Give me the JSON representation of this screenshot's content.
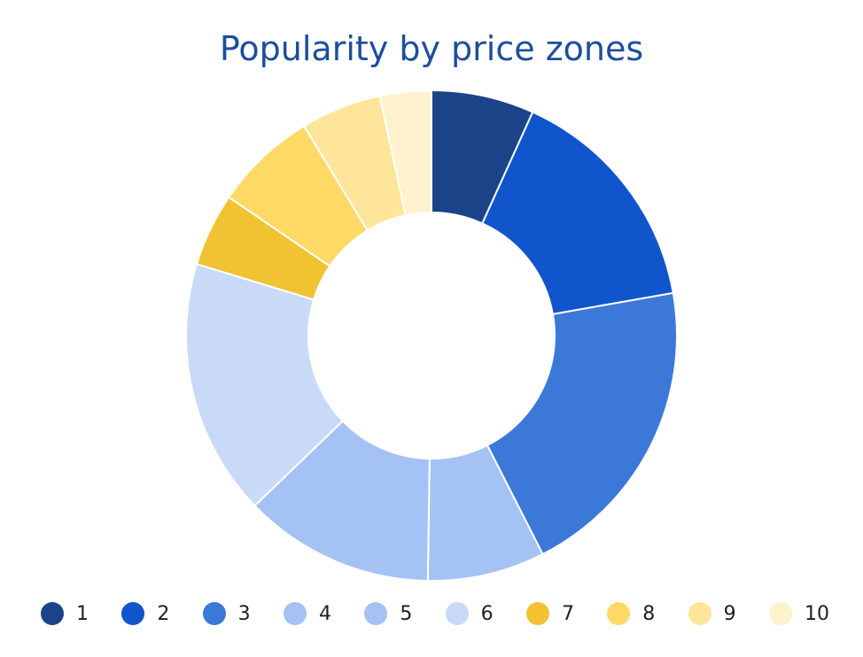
{
  "chart_data": {
    "type": "pie",
    "subtype": "donut",
    "title": "Popularity by price zones",
    "categories": [
      "1",
      "2",
      "3",
      "4",
      "5",
      "6",
      "7",
      "8",
      "9",
      "10"
    ],
    "values": [
      7,
      16,
      21,
      8,
      13,
      17.5,
      5,
      7,
      5.5,
      3.5
    ],
    "colors": [
      "#1b4488",
      "#1155cc",
      "#3c78d8",
      "#a4c2f4",
      "#a4c2f4",
      "#c9daf8",
      "#f1c232",
      "#ffd966",
      "#ffe599",
      "#fff2cc"
    ],
    "legend_order": [
      "1",
      "2",
      "3",
      "4",
      "5",
      "6",
      "7",
      "8",
      "9",
      "10"
    ],
    "legend_colors": [
      "#1b4488",
      "#1155cc",
      "#3c78d8",
      "#a4c2f4",
      "#a4c2f4",
      "#c9daf8",
      "#f1c232",
      "#ffd966",
      "#ffe599",
      "#fff2cc"
    ],
    "legend_position": "bottom",
    "direction": "clockwise",
    "start": "top"
  }
}
